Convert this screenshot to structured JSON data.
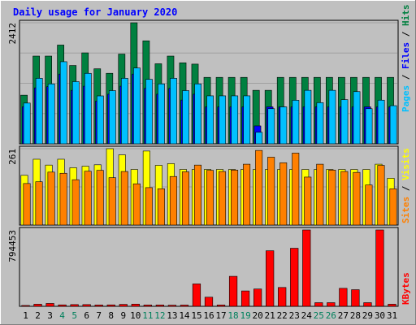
{
  "chart_data": {
    "type": "bar",
    "title": "Daily usage for January 2020",
    "categories": [
      "1",
      "2",
      "3",
      "4",
      "5",
      "6",
      "7",
      "8",
      "9",
      "10",
      "11",
      "12",
      "13",
      "14",
      "15",
      "16",
      "17",
      "18",
      "19",
      "20",
      "21",
      "22",
      "23",
      "24",
      "25",
      "26",
      "27",
      "28",
      "29",
      "30",
      "31"
    ],
    "weekend_days": [
      "4",
      "5",
      "11",
      "12",
      "18",
      "19",
      "25",
      "26"
    ],
    "colors": {
      "hits": "#008040",
      "files": "#0000ff",
      "pages": "#00c0ff",
      "visits": "#ffff00",
      "sites": "#ff8000",
      "kbytes": "#ff0000",
      "weekend_label": "#00805c",
      "weekday_label": "#000000",
      "title": "#0000ff",
      "plot_bg": "#c0c0c0"
    },
    "panels": [
      {
        "id": "top",
        "max_label": "2412",
        "ylim": [
          0,
          2412
        ],
        "legend": [
          {
            "text": "Pages",
            "color": "#00c0ff"
          },
          {
            "text": " / ",
            "color": "#000000"
          },
          {
            "text": "Files",
            "color": "#0000ff"
          },
          {
            "text": " / ",
            "color": "#000000"
          },
          {
            "text": "Hits",
            "color": "#008040"
          }
        ],
        "series": [
          {
            "name": "Hits",
            "color": "#008040",
            "values": [
              969,
              1748,
              1748,
              1968,
              1561,
              1812,
              1495,
              1405,
              1788,
              2412,
              2052,
              1595,
              1748,
              1614,
              1588,
              1324,
              1324,
              1324,
              1324,
              1066,
              1066,
              1324,
              1324,
              1324,
              1324,
              1324,
              1324,
              1324,
              1324,
              1324,
              1324
            ]
          },
          {
            "name": "Files",
            "color": "#0000ff",
            "values": [
              737,
              1115,
              1138,
              1389,
              1066,
              1148,
              851,
              989,
              1148,
              1389,
              1105,
              989,
              1105,
              872,
              989,
              736,
              736,
              736,
              736,
              357,
              736,
              736,
              736,
              736,
              736,
              736,
              736,
              736,
              736,
              736,
              736
            ]
          },
          {
            "name": "Pages",
            "color": "#00c0ff",
            "values": [
              812,
              1305,
              1194,
              1636,
              1239,
              1404,
              955,
              1060,
              1305,
              1511,
              1284,
              1194,
              1305,
              1060,
              1194,
              956,
              956,
              956,
              956,
              230,
              700,
              736,
              868,
              1066,
              820,
              1066,
              880,
              1040,
              700,
              870,
              760
            ]
          }
        ]
      },
      {
        "id": "mid",
        "max_label": "261",
        "ylim": [
          0,
          261
        ],
        "legend": [
          {
            "text": "Sites",
            "color": "#ff8000"
          },
          {
            "text": " / ",
            "color": "#000000"
          },
          {
            "text": "Visits",
            "color": "#ffff00"
          }
        ],
        "series": [
          {
            "name": "Visits",
            "color": "#ffff00",
            "values": [
              170,
              225,
              205,
              225,
              196,
              201,
              206,
              261,
              240,
              190,
              253,
              204,
              210,
              190,
              190,
              190,
              190,
              190,
              190,
              190,
              190,
              190,
              190,
              190,
              190,
              190,
              190,
              190,
              190,
              208,
              160
            ]
          },
          {
            "name": "Sites",
            "color": "#ff8000",
            "values": [
              142,
              148,
              181,
              177,
              155,
              184,
              187,
              162,
              183,
              141,
              128,
              124,
              166,
              182,
              205,
              187,
              183,
              188,
              208,
              255,
              232,
              213,
              246,
              164,
              208,
              188,
              183,
              180,
              137,
              204,
              124
            ]
          }
        ]
      },
      {
        "id": "bottom",
        "max_label": "794453",
        "ylim": [
          0,
          794453
        ],
        "legend": [
          {
            "text": "KBytes",
            "color": "#ff0000"
          }
        ],
        "series": [
          {
            "name": "KBytes",
            "color": "#ff0000",
            "values": [
              9000,
              22000,
              30000,
              15000,
              18000,
              18000,
              14000,
              15000,
              20000,
              23000,
              14000,
              14000,
              12000,
              13000,
              233000,
              95000,
              14000,
              312000,
              160000,
              180000,
              578000,
              196000,
              604000,
              794453,
              38000,
              38000,
              187000,
              173000,
              38000,
              794453,
              22000
            ]
          }
        ]
      }
    ]
  }
}
